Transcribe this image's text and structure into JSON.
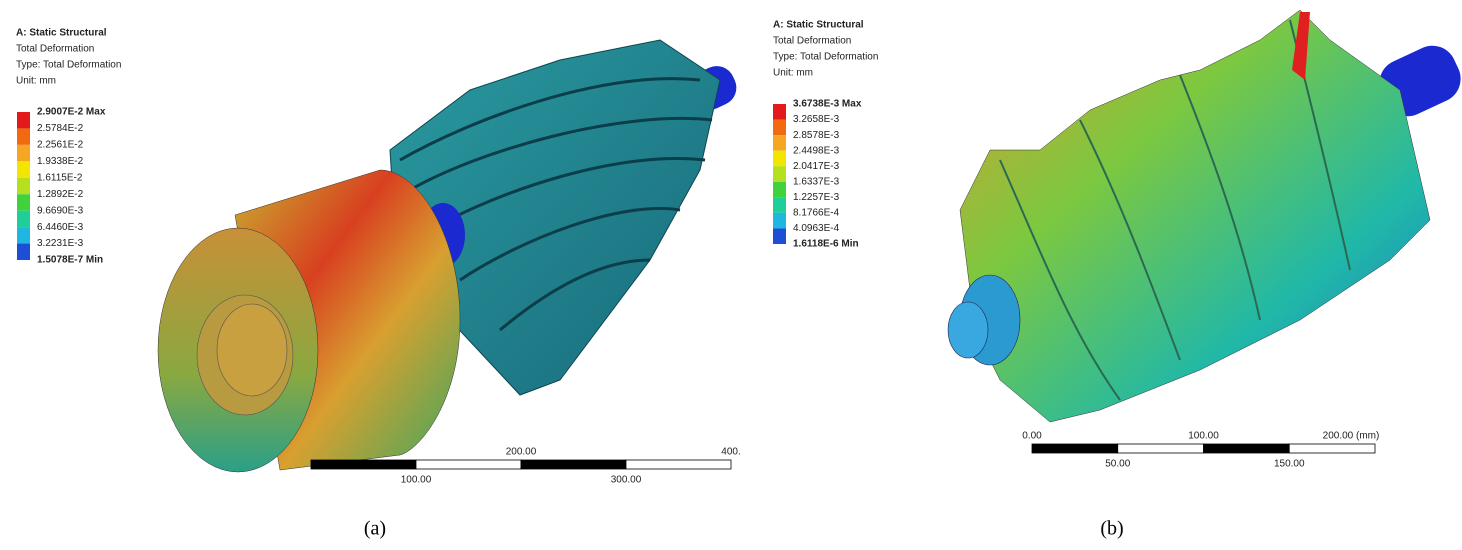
{
  "panels": [
    {
      "header": [
        "A: Static Structural",
        "Total Deformation",
        "Type: Total Deformation",
        "Unit: mm"
      ],
      "legend": {
        "labels": [
          "2.9007E-2 Max",
          "2.5784E-2",
          "2.2561E-2",
          "1.9338E-2",
          "1.6115E-2",
          "1.2892E-2",
          "9.6690E-3",
          "6.4460E-3",
          "3.2231E-3",
          "1.5078E-7 Min"
        ],
        "colors": [
          "#e31a1c",
          "#f26a10",
          "#f5a623",
          "#f2e600",
          "#b5e01e",
          "#3fd23a",
          "#1fcf9a",
          "#1fb6e0",
          "#1c4fd6"
        ]
      },
      "scale": {
        "top": [
          "400.",
          "200.00"
        ],
        "bottom": [
          "100.00",
          "300.00"
        ]
      },
      "caption": "(a)"
    },
    {
      "header": [
        "A: Static Structural",
        "Total Deformation",
        "Type: Total Deformation",
        "Unit: mm"
      ],
      "legend": {
        "labels": [
          "3.6738E-3 Max",
          "3.2658E-3",
          "2.8578E-3",
          "2.4498E-3",
          "2.0417E-3",
          "1.6337E-3",
          "1.2257E-3",
          "8.1766E-4",
          "4.0963E-4",
          "1.6118E-6 Min"
        ],
        "colors": [
          "#e31a1c",
          "#f26a10",
          "#f5a623",
          "#f2e600",
          "#b5e01e",
          "#3fd23a",
          "#1fcf9a",
          "#1fb6e0",
          "#1c4fd6"
        ]
      },
      "scale": {
        "top": [
          "200.00 (mm)",
          "100.00",
          "0.00"
        ],
        "bottom": [
          "50.00",
          "150.00"
        ]
      },
      "caption": "(b)"
    }
  ]
}
